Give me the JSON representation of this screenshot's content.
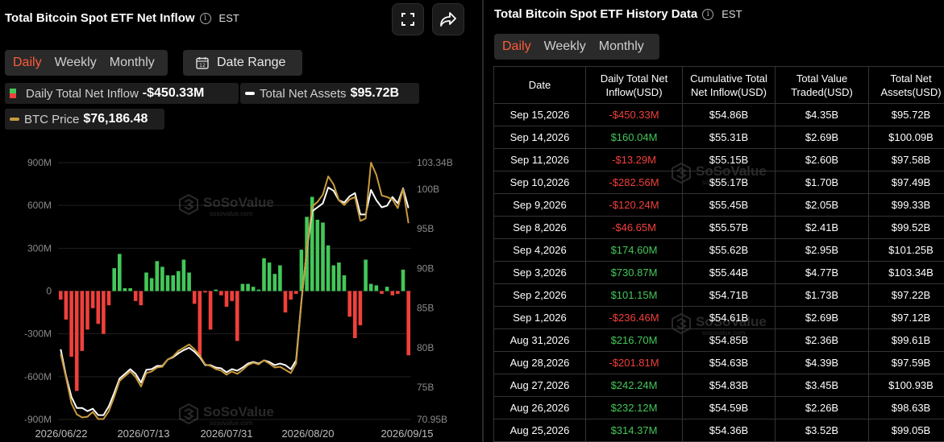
{
  "left": {
    "title": "Total Bitcoin Spot ETF Net Inflow",
    "tz": "EST",
    "tabs": [
      "Daily",
      "Weekly",
      "Monthly"
    ],
    "active_tab": "Daily",
    "date_range_label": "Date Range",
    "date_range_icon_text": "12",
    "legend": {
      "inflow_label": "Daily Total Net Inflow",
      "inflow_value": "-$450.33M",
      "assets_label": "Total Net Assets",
      "assets_value": "$95.72B",
      "btc_label": "BTC Price",
      "btc_value": "$76,186.48"
    },
    "watermark": {
      "brand": "SoSoValue",
      "sub": "sosovalue.com"
    }
  },
  "colors": {
    "positive": "#43c759",
    "negative": "#f0403b",
    "btc_line": "#c89a3c",
    "assets_line": "#ffffff",
    "accent": "#ff5b3a"
  },
  "chart_data": {
    "type": "bar",
    "y_left_ticks": [
      "900M",
      "600M",
      "300M",
      "0",
      "-300M",
      "-600M",
      "-900M"
    ],
    "y_left_range": [
      -900,
      900
    ],
    "y_right_ticks": [
      "103.34B",
      "100B",
      "95B",
      "90B",
      "85B",
      "80B",
      "75B",
      "70.95B"
    ],
    "y_right_range": [
      70.95,
      103.34
    ],
    "x_tick_labels": [
      "2026/06/22",
      "2026/07/13",
      "2026/07/31",
      "2026/08/20",
      "2026/09/15"
    ],
    "series": [
      {
        "name": "Daily Total Net Inflow",
        "values": [
          -60,
          -200,
          -460,
          -700,
          -420,
          -270,
          -120,
          -230,
          -300,
          -100,
          160,
          260,
          20,
          20,
          -70,
          -100,
          130,
          90,
          210,
          170,
          110,
          110,
          140,
          220,
          130,
          -90,
          -460,
          -10,
          -270,
          10,
          -30,
          -110,
          -70,
          -350,
          50,
          50,
          30,
          10,
          230,
          200,
          120,
          180,
          -150,
          -60,
          -20,
          290,
          520,
          660,
          500,
          480,
          320,
          180,
          200,
          110,
          -180,
          -330,
          -240,
          220,
          50,
          40,
          -20,
          30,
          -30,
          -20,
          150,
          -450
        ]
      },
      {
        "name": "Total Net Assets",
        "values": [
          79.8,
          76.4,
          73.8,
          72.4,
          72.4,
          72.0,
          72.3,
          71.5,
          71.5,
          72.6,
          74.3,
          76.1,
          76.7,
          77.3,
          76.7,
          75.6,
          77.2,
          77.3,
          77.7,
          77.7,
          78.5,
          78.8,
          79.3,
          79.7,
          80.0,
          79.5,
          78.8,
          77.8,
          77.8,
          77.5,
          77.4,
          76.9,
          77.3,
          77.1,
          77.5,
          78.0,
          78.2,
          78.0,
          78.4,
          78.2,
          77.8,
          78.0,
          77.8,
          77.3,
          78.4,
          86.0,
          92.3,
          97.2,
          97.7,
          98.2,
          100.2,
          99.8,
          98.6,
          98.3,
          99.1,
          99.5,
          96.8,
          96.8,
          99.9,
          98.6,
          97.7,
          97.9,
          99.0,
          98.2,
          100.1,
          97.6
        ]
      },
      {
        "name": "BTC Price",
        "values": [
          79.2,
          76.2,
          73.0,
          71.6,
          71.2,
          71.3,
          71.9,
          71.0,
          71.0,
          72.0,
          73.8,
          75.8,
          76.4,
          77.0,
          76.3,
          75.1,
          76.8,
          77.0,
          77.5,
          77.6,
          78.5,
          78.9,
          79.6,
          80.0,
          80.4,
          79.8,
          79.0,
          77.9,
          77.7,
          77.3,
          77.1,
          76.6,
          77.0,
          76.7,
          77.2,
          77.8,
          78.1,
          77.9,
          78.4,
          78.0,
          77.5,
          77.6,
          77.2,
          76.8,
          78.0,
          85.8,
          92.5,
          97.8,
          98.4,
          99.3,
          101.6,
          100.6,
          98.6,
          98.0,
          98.7,
          99.0,
          96.0,
          96.3,
          103.34,
          101.8,
          99.2,
          99.0,
          98.7,
          97.6,
          100.0,
          95.7
        ]
      }
    ]
  },
  "right": {
    "title": "Total Bitcoin Spot ETF History Data",
    "tz": "EST",
    "tabs": [
      "Daily",
      "Weekly",
      "Monthly"
    ],
    "active_tab": "Daily",
    "columns": [
      "Date",
      "Daily Total Net Inflow(USD)",
      "Cumulative Total Net Inflow(USD)",
      "Total Value Traded(USD)",
      "Total Net Assets(USD)"
    ],
    "rows": [
      [
        "Sep 15,2026",
        "-$450.33M",
        "$54.86B",
        "$4.35B",
        "$95.72B"
      ],
      [
        "Sep 14,2026",
        "$160.04M",
        "$55.31B",
        "$2.69B",
        "$100.09B"
      ],
      [
        "Sep 11,2026",
        "-$13.29M",
        "$55.15B",
        "$2.60B",
        "$97.58B"
      ],
      [
        "Sep 10,2026",
        "-$282.56M",
        "$55.17B",
        "$1.70B",
        "$97.49B"
      ],
      [
        "Sep 9,2026",
        "-$120.24M",
        "$55.45B",
        "$2.05B",
        "$99.33B"
      ],
      [
        "Sep 8,2026",
        "-$46.65M",
        "$55.57B",
        "$2.41B",
        "$99.52B"
      ],
      [
        "Sep 4,2026",
        "$174.60M",
        "$55.62B",
        "$2.95B",
        "$101.25B"
      ],
      [
        "Sep 3,2026",
        "$730.87M",
        "$55.44B",
        "$4.77B",
        "$103.34B"
      ],
      [
        "Sep 2,2026",
        "$101.15M",
        "$54.71B",
        "$1.73B",
        "$97.22B"
      ],
      [
        "Sep 1,2026",
        "-$236.46M",
        "$54.61B",
        "$2.69B",
        "$97.12B"
      ],
      [
        "Aug 31,2026",
        "$216.70M",
        "$54.85B",
        "$2.36B",
        "$99.61B"
      ],
      [
        "Aug 28,2026",
        "-$201.81M",
        "$54.63B",
        "$4.39B",
        "$97.59B"
      ],
      [
        "Aug 27,2026",
        "$242.24M",
        "$54.83B",
        "$3.45B",
        "$100.93B"
      ],
      [
        "Aug 26,2026",
        "$232.12M",
        "$54.59B",
        "$2.26B",
        "$98.63B"
      ],
      [
        "Aug 25,2026",
        "$314.37M",
        "$54.36B",
        "$3.52B",
        "$99.05B"
      ]
    ]
  }
}
